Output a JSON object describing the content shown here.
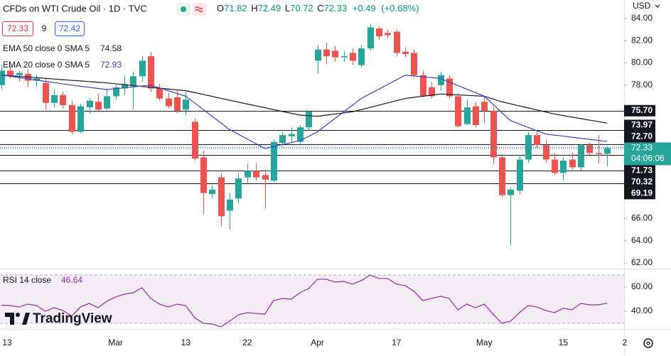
{
  "quote": {
    "sell": 72.33,
    "spread": 9,
    "buy": 72.42
  },
  "branding": "TradingView",
  "chart_data": [
    {
      "type": "candlestick",
      "title": "CFDs on WTI Crude Oil · 1D · TVC",
      "currency": "USD",
      "ohlc_prefixes": [
        "O",
        "H",
        "L",
        "C"
      ],
      "change": {
        "value": 0.49,
        "label": "+0.49"
      },
      "change_percent": {
        "value": 0.68,
        "label": "(+0.68%)"
      },
      "categories": [
        "13",
        null,
        null,
        null,
        null,
        null,
        null,
        null,
        null,
        null,
        null,
        null,
        null,
        "Mar",
        null,
        null,
        null,
        null,
        null,
        null,
        null,
        "13",
        null,
        null,
        null,
        null,
        null,
        null,
        "22",
        null,
        null,
        null,
        null,
        null,
        null,
        null,
        "Apr",
        null,
        null,
        null,
        null,
        null,
        null,
        null,
        null,
        "17",
        null,
        null,
        null,
        null,
        null,
        null,
        null,
        null,
        null,
        "May",
        null,
        null,
        null,
        null,
        null,
        null,
        null,
        null,
        "15",
        null,
        null,
        null,
        null,
        null,
        null,
        "2"
      ],
      "open": [
        78.0,
        79.3,
        78.9,
        79.0,
        78.4,
        78.2,
        76.4,
        77.1,
        76.2,
        73.8,
        76.0,
        76.5,
        75.9,
        77.0,
        77.7,
        77.9,
        78.8,
        80.6,
        77.7,
        76.8,
        76.9,
        75.8,
        74.7,
        71.5,
        68.2,
        69.7,
        66.7,
        67.8,
        69.7,
        70.3,
        69.9,
        69.4,
        72.8,
        73.4,
        72.9,
        74.2,
        80.2,
        81.2,
        81.1,
        80.5,
        80.9,
        79.8,
        81.3,
        83.1,
        82.7,
        82.8,
        81.0,
        80.9,
        78.9,
        77.8,
        78.0,
        78.6,
        77.0,
        74.5,
        76.1,
        76.5,
        75.7,
        71.5,
        68.1,
        68.5,
        71.3,
        73.5,
        72.6,
        71.3,
        70.1,
        71.3,
        70.6,
        72.6,
        71.9,
        71.82,
        null,
        null
      ],
      "high": [
        79.8,
        79.7,
        79.3,
        79.4,
        78.9,
        78.6,
        77.6,
        77.4,
        76.6,
        76.3,
        76.8,
        77.2,
        77.7,
        78.0,
        78.9,
        79.2,
        80.6,
        81.0,
        78.1,
        77.3,
        77.5,
        77.4,
        75.0,
        72.1,
        69.0,
        70.1,
        68.3,
        70.1,
        70.9,
        71.0,
        70.4,
        73.1,
        73.8,
        74.2,
        74.4,
        75.7,
        81.6,
        81.8,
        81.5,
        81.1,
        81.3,
        81.6,
        83.5,
        83.3,
        83.0,
        83.0,
        81.4,
        81.2,
        79.3,
        78.3,
        79.2,
        78.9,
        77.3,
        76.7,
        76.5,
        77.0,
        76.0,
        71.7,
        68.8,
        71.6,
        73.8,
        73.9,
        73.1,
        71.9,
        71.5,
        71.9,
        72.7,
        72.8,
        73.5,
        72.49,
        null,
        null
      ],
      "low": [
        77.6,
        78.6,
        78.3,
        77.8,
        77.9,
        75.8,
        76.0,
        75.9,
        73.6,
        73.7,
        75.4,
        75.6,
        75.8,
        76.7,
        77.1,
        75.8,
        78.3,
        77.4,
        76.6,
        75.9,
        75.5,
        75.3,
        71.2,
        66.4,
        67.9,
        65.3,
        65.0,
        67.4,
        69.2,
        69.4,
        66.9,
        69.3,
        72.5,
        72.8,
        72.7,
        73.9,
        79.0,
        79.9,
        80.1,
        80.1,
        79.8,
        79.6,
        81.1,
        82.1,
        82.2,
        80.6,
        80.5,
        78.7,
        76.9,
        76.8,
        77.5,
        76.8,
        74.2,
        74.4,
        74.2,
        74.6,
        70.9,
        67.9,
        63.6,
        68.2,
        71.0,
        72.3,
        71.0,
        69.9,
        69.4,
        70.4,
        70.3,
        71.6,
        71.0,
        70.72,
        null,
        null
      ],
      "close": [
        79.3,
        78.9,
        79.1,
        78.4,
        78.6,
        76.4,
        77.1,
        76.2,
        73.8,
        76.1,
        76.6,
        75.8,
        77.0,
        77.8,
        78.1,
        78.8,
        80.2,
        77.7,
        76.8,
        76.1,
        75.7,
        76.7,
        71.4,
        68.3,
        68.6,
        66.2,
        67.7,
        69.6,
        70.3,
        69.7,
        69.5,
        72.9,
        73.5,
        73.6,
        74.2,
        75.6,
        81.2,
        80.6,
        80.5,
        80.6,
        80.2,
        81.3,
        83.2,
        82.4,
        82.5,
        80.9,
        80.8,
        78.9,
        77.0,
        77.0,
        78.9,
        77.0,
        74.3,
        76.0,
        74.4,
        75.7,
        71.5,
        68.1,
        68.6,
        71.3,
        73.5,
        72.6,
        71.3,
        70.1,
        71.2,
        70.6,
        72.6,
        71.9,
        71.8,
        72.33,
        null,
        null
      ],
      "up_color": "#26a69a",
      "down_color": "#ef5350",
      "lines": [
        {
          "name": "EMA 50 close 0 SMA 5",
          "color": "#131722",
          "values": [
            78.9,
            78.84,
            78.78,
            78.73,
            78.67,
            78.61,
            78.55,
            78.49,
            78.43,
            78.38,
            78.32,
            78.26,
            78.2,
            78.12,
            78.04,
            77.96,
            77.88,
            77.8,
            77.72,
            77.65,
            77.57,
            77.5,
            77.33,
            77.16,
            76.99,
            76.81,
            76.64,
            76.47,
            76.3,
            76.13,
            75.97,
            75.8,
            75.63,
            75.47,
            75.3,
            75.25,
            75.2,
            75.3,
            75.4,
            75.5,
            75.6,
            75.8,
            76.0,
            76.2,
            76.4,
            76.6,
            76.8,
            76.9,
            77.0,
            77.1,
            77.2,
            77.16,
            77.12,
            77.08,
            77.04,
            77.0,
            76.75,
            76.5,
            76.32,
            76.13,
            75.95,
            75.77,
            75.58,
            75.4,
            75.26,
            75.12,
            74.99,
            74.85,
            74.72,
            74.58,
            null,
            null
          ]
        },
        {
          "name": "EMA 20 close 0 SMA 5",
          "color": "#3d3fd1",
          "values": [
            78.9,
            78.79,
            78.68,
            78.56,
            78.45,
            78.34,
            78.23,
            78.11,
            78.0,
            77.9,
            77.8,
            77.7,
            77.6,
            77.68,
            77.76,
            77.84,
            77.92,
            78.0,
            77.75,
            77.5,
            77.25,
            77.0,
            76.4,
            75.8,
            75.2,
            74.6,
            74.0,
            73.58,
            73.15,
            72.73,
            72.3,
            72.48,
            72.65,
            72.83,
            73.0,
            73.4,
            73.8,
            74.4,
            75.0,
            75.6,
            76.2,
            76.8,
            77.22,
            77.64,
            78.06,
            78.48,
            78.9,
            78.83,
            78.75,
            78.68,
            78.6,
            78.28,
            77.96,
            77.64,
            77.32,
            77.0,
            76.27,
            75.53,
            74.8,
            74.5,
            74.2,
            73.9,
            73.6,
            73.5,
            73.41,
            73.31,
            73.22,
            73.12,
            73.03,
            72.93,
            null,
            null
          ]
        }
      ],
      "levels": [
        {
          "value": 75.7,
          "label": "75.70"
        },
        {
          "value": 73.97,
          "label": "73.97"
        },
        {
          "value": 72.7,
          "label": "72.70"
        },
        {
          "value": 71.73,
          "label": "71.73"
        },
        {
          "value": 70.32,
          "label": "70.32"
        },
        {
          "value": 69.19,
          "label": "69.19"
        }
      ],
      "countdown": "04:06:06",
      "ylim": [
        61.49,
        85.66
      ],
      "yticks": [
        {
          "value": 84,
          "label": "84.00"
        },
        {
          "value": 82,
          "label": "82.00"
        },
        {
          "value": 80,
          "label": "80.00"
        },
        {
          "value": 78,
          "label": "78.00"
        },
        {
          "value": 66,
          "label": "66.00"
        },
        {
          "value": 64,
          "label": "64.00"
        },
        {
          "value": 62,
          "label": "62.00"
        }
      ]
    },
    {
      "type": "line",
      "title": "RSI 14 close",
      "color": "#9c27b0",
      "band": [
        30,
        70
      ],
      "values": [
        45,
        44.7,
        43.5,
        45.9,
        44.7,
        40,
        42.9,
        40.6,
        35.9,
        43.5,
        46.5,
        42.9,
        48.2,
        51.8,
        54.1,
        55.3,
        59.4,
        50.6,
        45.9,
        43.5,
        45.9,
        44.7,
        34.7,
        30,
        29.4,
        27.1,
        31.8,
        37.1,
        38.8,
        38.2,
        37.6,
        48.8,
        50.6,
        50,
        55.3,
        58.8,
        66.5,
        66.5,
        64.1,
        64.7,
        62.4,
        65.3,
        70,
        67.1,
        67.1,
        62.4,
        61.2,
        56.5,
        48.8,
        50.6,
        52.4,
        50.6,
        41.2,
        45.9,
        42.9,
        45.9,
        37.6,
        30,
        31.8,
        38.8,
        44.7,
        43.5,
        40.6,
        38.8,
        42.4,
        41.2,
        46.5,
        45.3,
        45.3,
        46.64,
        null,
        null
      ],
      "ylim": [
        26.47,
        72.35
      ],
      "yticks": [
        {
          "value": 60,
          "label": "60.00"
        },
        {
          "value": 40,
          "label": "40.00"
        }
      ]
    }
  ]
}
